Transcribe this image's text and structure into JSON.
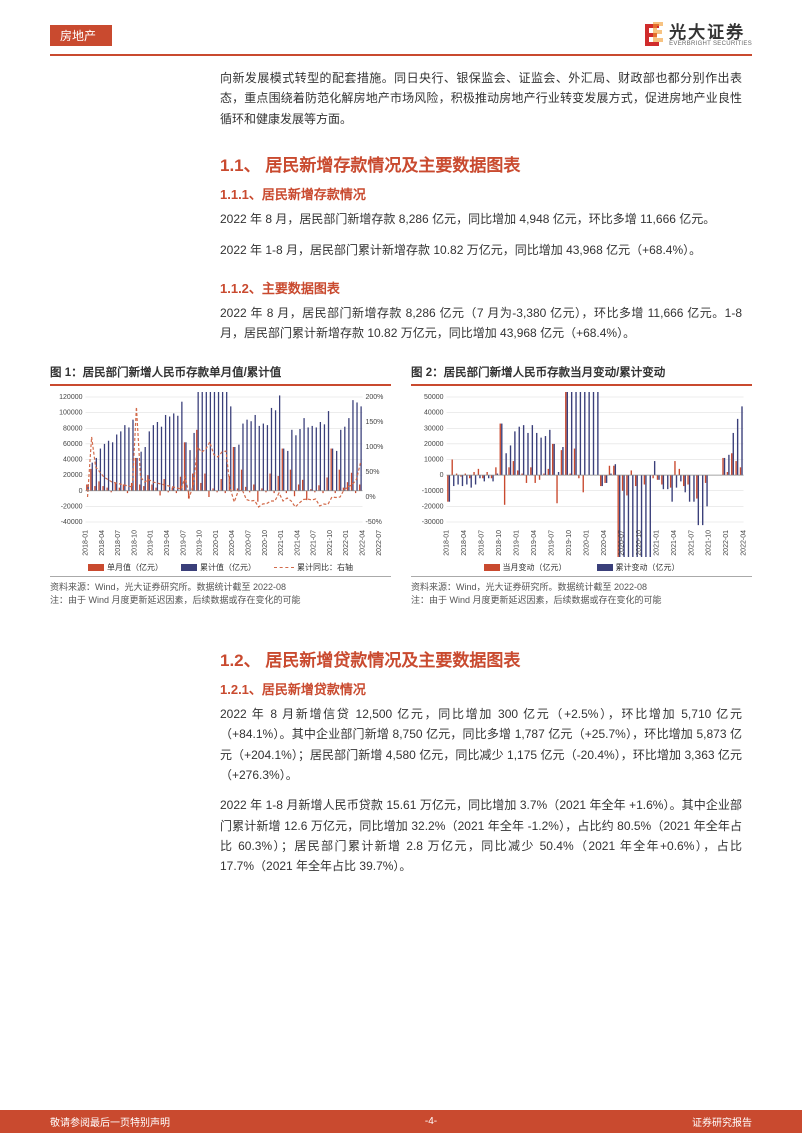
{
  "header": {
    "tag": "房地产",
    "logo_cn": "光大证券",
    "logo_en": "EVERBRIGHT SECURITIES"
  },
  "intro_para": "向新发展模式转型的配套措施。同日央行、银保监会、证监会、外汇局、财政部也都分别作出表态，重点围绕着防范化解房地产市场风险，积极推动房地产行业转变发展方式，促进房地产业良性循环和健康发展等方面。",
  "sec11": {
    "h2": "1.1、 居民新增存款情况及主要数据图表",
    "h3a": "1.1.1、居民新增存款情况",
    "p1": "2022 年 8 月，居民部门新增存款 8,286 亿元，同比增加 4,948 亿元，环比多增 11,666 亿元。",
    "p2": "2022 年 1-8 月，居民部门累计新增存款 10.82 万亿元，同比增加 43,968 亿元（+68.4%）。",
    "h3b": "1.1.2、主要数据图表",
    "p3": "2022 年 8 月，居民部门新增存款 8,286 亿元（7 月为-3,380 亿元），环比多增 11,666 亿元。1-8 月，居民部门累计新增存款 10.82 万亿元，同比增加 43,968 亿元（+68.4%）。"
  },
  "sec12": {
    "h2": "1.2、 居民新增贷款情况及主要数据图表",
    "h3a": "1.2.1、居民新增贷款情况",
    "p1": "2022 年 8 月新增信贷 12,500 亿元，同比增加 300 亿元（+2.5%），环比增加 5,710 亿元（+84.1%）。其中企业部门新增 8,750 亿元，同比多增 1,787 亿元（+25.7%），环比增加 5,873 亿元（+204.1%）；居民部门新增 4,580 亿元，同比减少 1,175 亿元（-20.4%），环比增加 3,363 亿元（+276.3%）。",
    "p2": "2022 年 1-8 月新增人民币贷款 15.61 万亿元，同比增加 3.7%（2021 年全年 +1.6%）。其中企业部门累计新增 12.6 万亿元，同比增加 32.2%（2021 年全年 -1.2%），占比约 80.5%（2021 年全年占比 60.3%）；居民部门累计新增 2.8 万亿元，同比减少 50.4%（2021 年全年+0.6%），占比 17.7%（2021 年全年占比 39.7%）。"
  },
  "chart1": {
    "title": "图 1：居民部门新增人民币存款单月值/累计值",
    "legend": {
      "a": "单月值（亿元）",
      "b": "累计值（亿元）",
      "c": "累计同比：右轴"
    },
    "colors": {
      "bar1": "#c94a2f",
      "bar2": "#3a3f7a",
      "line": "#d26a4a",
      "grid": "#d9d9d9",
      "axis": "#888"
    },
    "ylim": [
      -40000,
      120000
    ],
    "ytick_step": 20000,
    "ylim_r": [
      -50,
      200
    ],
    "ytick_r_step": 50,
    "x_labels": [
      "2018-01",
      "2018-04",
      "2018-07",
      "2018-10",
      "2019-01",
      "2019-04",
      "2019-07",
      "2019-10",
      "2020-01",
      "2020-04",
      "2020-07",
      "2020-10",
      "2021-01",
      "2021-04",
      "2021-07",
      "2021-10",
      "2022-01",
      "2022-04",
      "2022-07"
    ],
    "monthly": [
      8000,
      28000,
      6000,
      12000,
      6000,
      4000,
      -2000,
      10000,
      4000,
      8000,
      -3000,
      10000,
      42000,
      8000,
      6000,
      20000,
      8000,
      4000,
      -6000,
      15000,
      -2000,
      4000,
      -3000,
      18000,
      62000,
      -10000,
      22000,
      78000,
      10000,
      22000,
      -8000,
      3000,
      -2000,
      15000,
      -3000,
      19000,
      56000,
      3000,
      27000,
      5000,
      -2000,
      8000,
      -14000,
      3000,
      -2000,
      22000,
      -3000,
      19000,
      54000,
      -3000,
      27000,
      -7000,
      8000,
      14000,
      -12000,
      2000,
      -2000,
      7000,
      -3000,
      17000,
      54000,
      -3000,
      27000,
      4000,
      11000,
      23000,
      -3000,
      8000
    ],
    "cumulative": [
      8000,
      36000,
      42000,
      54000,
      60000,
      64000,
      62000,
      72000,
      76000,
      84000,
      81000,
      91000,
      42000,
      50000,
      56000,
      76000,
      84000,
      88000,
      82000,
      97000,
      95000,
      99000,
      96000,
      114000,
      62000,
      52000,
      74000,
      152000,
      162000,
      184000,
      176000,
      179000,
      177000,
      192000,
      189000,
      108000,
      56000,
      59000,
      86000,
      91000,
      89000,
      97000,
      83000,
      86000,
      84000,
      106000,
      103000,
      122000,
      54000,
      51000,
      78000,
      71000,
      79000,
      93000,
      81000,
      83000,
      81000,
      88000,
      85000,
      102000,
      54000,
      51000,
      78000,
      82000,
      93000,
      116000,
      113000,
      108000
    ],
    "line_pct": [
      0,
      120,
      60,
      50,
      40,
      35,
      30,
      28,
      26,
      24,
      22,
      20,
      180,
      40,
      30,
      35,
      30,
      28,
      26,
      24,
      22,
      20,
      18,
      16,
      40,
      0,
      25,
      100,
      90,
      95,
      110,
      85,
      80,
      90,
      92,
      18,
      -10,
      12,
      14,
      -5,
      -8,
      -7,
      -20,
      -14,
      -13,
      -8,
      -8,
      8,
      -8,
      -2,
      -8,
      -20,
      -12,
      -5,
      -4,
      -6,
      -4,
      -18,
      -14,
      -15,
      0,
      -1,
      0,
      15,
      20,
      25,
      35,
      68
    ],
    "source": "资料来源：Wind，光大证券研究所。数据统计截至 2022-08",
    "note": "注：由于 Wind 月度更新延迟因素，后续数据或存在变化的可能"
  },
  "chart2": {
    "title": "图 2：居民部门新增人民币存款当月变动/累计变动",
    "legend": {
      "a": "当月变动（亿元）",
      "b": "累计变动（亿元）"
    },
    "colors": {
      "bar1": "#c94a2f",
      "bar2": "#3a3f7a",
      "grid": "#d9d9d9",
      "axis": "#888"
    },
    "ylim": [
      -30000,
      50000
    ],
    "ytick_step": 10000,
    "x_labels": [
      "2018-01",
      "2018-04",
      "2018-07",
      "2018-10",
      "2019-01",
      "2019-04",
      "2019-07",
      "2019-10",
      "2020-01",
      "2020-04",
      "2020-07",
      "2020-10",
      "2021-01",
      "2021-04",
      "2021-07",
      "2021-10",
      "2022-01",
      "2022-04",
      "2022-07"
    ],
    "monthly_delta": [
      -17000,
      10000,
      1000,
      -1000,
      1000,
      -2000,
      2000,
      4000,
      -2000,
      2000,
      -2000,
      5000,
      33000,
      -19000,
      5000,
      9000,
      3000,
      1000,
      -5000,
      5000,
      -5000,
      -3000,
      1000,
      4000,
      20000,
      -18000,
      16000,
      57000,
      1000,
      17000,
      -2000,
      -11000,
      0,
      0,
      0,
      -7000,
      -5000,
      6000,
      6000,
      -60000,
      -10000,
      -13000,
      3000,
      -7000,
      0,
      -6000,
      0,
      -2000,
      -3000,
      -6000,
      0,
      -8000,
      9000,
      4000,
      -7000,
      -6000,
      0,
      -15000,
      0,
      -5000,
      0,
      0,
      0,
      11000,
      2000,
      14000,
      9000,
      5000
    ],
    "cumulative_delta": [
      -17000,
      -7000,
      -6000,
      -7000,
      -6000,
      -8000,
      -6000,
      -2000,
      -4000,
      -2000,
      -4000,
      1000,
      33000,
      14000,
      19000,
      28000,
      31000,
      32000,
      27000,
      32000,
      27000,
      24000,
      25000,
      29000,
      20000,
      2000,
      18000,
      75000,
      76000,
      93000,
      91000,
      80000,
      80000,
      80000,
      80000,
      -7000,
      -5000,
      1000,
      7000,
      -53000,
      -63000,
      -76000,
      -73000,
      -80000,
      -80000,
      -86000,
      -86000,
      9000,
      -3000,
      -9000,
      -9000,
      -17000,
      -8000,
      -4000,
      -11000,
      -17000,
      -17000,
      -32000,
      -32000,
      -20000,
      0,
      0,
      0,
      11000,
      13000,
      27000,
      36000,
      44000
    ],
    "source": "资料来源：Wind，光大证券研究所。数据统计截至 2022-08",
    "note": "注：由于 Wind 月度更新延迟因素，后续数据或存在变化的可能"
  },
  "footer": {
    "left": "敬请参阅最后一页特别声明",
    "center": "-4-",
    "right": "证券研究报告"
  }
}
